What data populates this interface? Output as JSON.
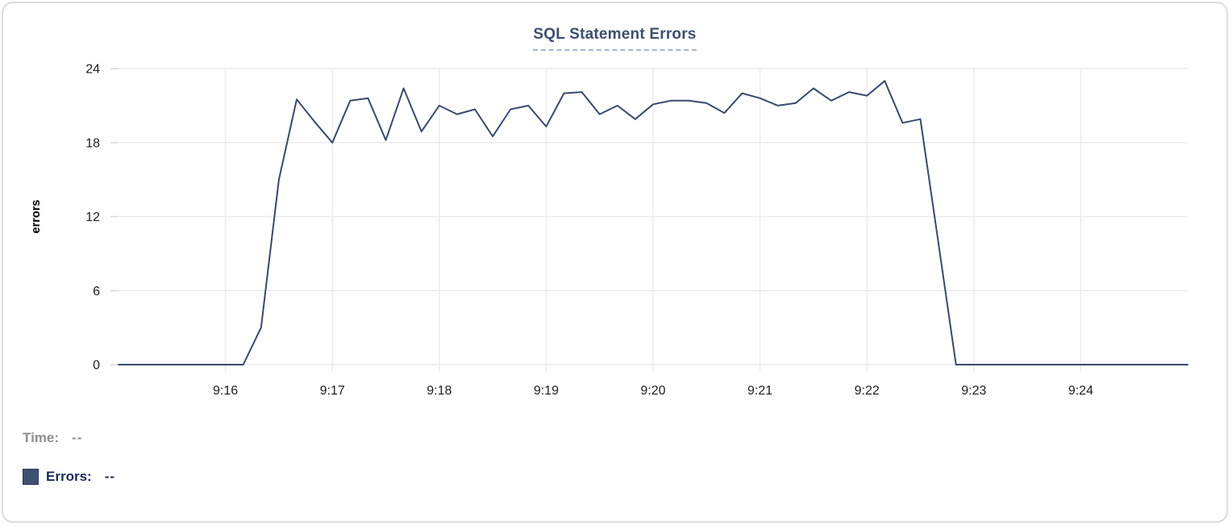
{
  "card": {
    "title": "SQL Statement Errors"
  },
  "readout": {
    "time_label": "Time:",
    "time_value": "--",
    "errors_label": "Errors:",
    "errors_value": "--"
  },
  "colors": {
    "line": "#3b4a6b",
    "title": "#3d4e6b",
    "grid": "#ececec",
    "tick": "#d9d9d9",
    "axis_text": "#1e1e1e",
    "time_text": "#8e8e93",
    "errors_text": "#1b2a52",
    "underline": "#a9b6cf",
    "swatch": "#3e5070",
    "card_border": "#dcdcdc"
  },
  "chart_data": {
    "type": "line",
    "title": "SQL Statement Errors",
    "xlabel": "",
    "ylabel": "errors",
    "ylim": [
      0,
      24
    ],
    "yticks": [
      0,
      6,
      12,
      18,
      24
    ],
    "x_tick_labels": [
      "9:16",
      "9:17",
      "9:18",
      "9:19",
      "9:20",
      "9:21",
      "9:22",
      "9:23",
      "9:24"
    ],
    "x_start": "9:15:00",
    "x_end": "9:25:00",
    "interval_seconds": 10,
    "grid": true,
    "legend_position": "bottom-left",
    "series": [
      {
        "name": "Errors",
        "color": "#3b4a6b",
        "times": [
          "9:15:00",
          "9:15:10",
          "9:15:20",
          "9:15:30",
          "9:15:40",
          "9:15:50",
          "9:16:00",
          "9:16:10",
          "9:16:20",
          "9:16:30",
          "9:16:40",
          "9:16:50",
          "9:17:00",
          "9:17:10",
          "9:17:20",
          "9:17:30",
          "9:17:40",
          "9:17:50",
          "9:18:00",
          "9:18:10",
          "9:18:20",
          "9:18:30",
          "9:18:40",
          "9:18:50",
          "9:19:00",
          "9:19:10",
          "9:19:20",
          "9:19:30",
          "9:19:40",
          "9:19:50",
          "9:20:00",
          "9:20:10",
          "9:20:20",
          "9:20:30",
          "9:20:40",
          "9:20:50",
          "9:21:00",
          "9:21:10",
          "9:21:20",
          "9:21:30",
          "9:21:40",
          "9:21:50",
          "9:22:00",
          "9:22:10",
          "9:22:20",
          "9:22:30",
          "9:22:40",
          "9:22:50",
          "9:23:00",
          "9:23:10",
          "9:23:20",
          "9:23:30",
          "9:23:40",
          "9:23:50",
          "9:24:00",
          "9:24:10",
          "9:24:20",
          "9:24:30",
          "9:24:40",
          "9:24:50",
          "9:25:00"
        ],
        "values": [
          0,
          0,
          0,
          0,
          0,
          0,
          0,
          0,
          3,
          15,
          21.5,
          19.7,
          18,
          21.4,
          21.6,
          18.2,
          22.4,
          18.9,
          21,
          20.3,
          20.7,
          18.5,
          20.7,
          21,
          19.3,
          22,
          22.1,
          20.3,
          21,
          19.9,
          21.1,
          21.4,
          21.4,
          21.2,
          20.4,
          22,
          21.6,
          21,
          21.2,
          22.4,
          21.4,
          22.1,
          21.8,
          23,
          19.6,
          19.9,
          10,
          0,
          0,
          0,
          0,
          0,
          0,
          0,
          0,
          0,
          0,
          0,
          0,
          0,
          0
        ]
      }
    ]
  }
}
